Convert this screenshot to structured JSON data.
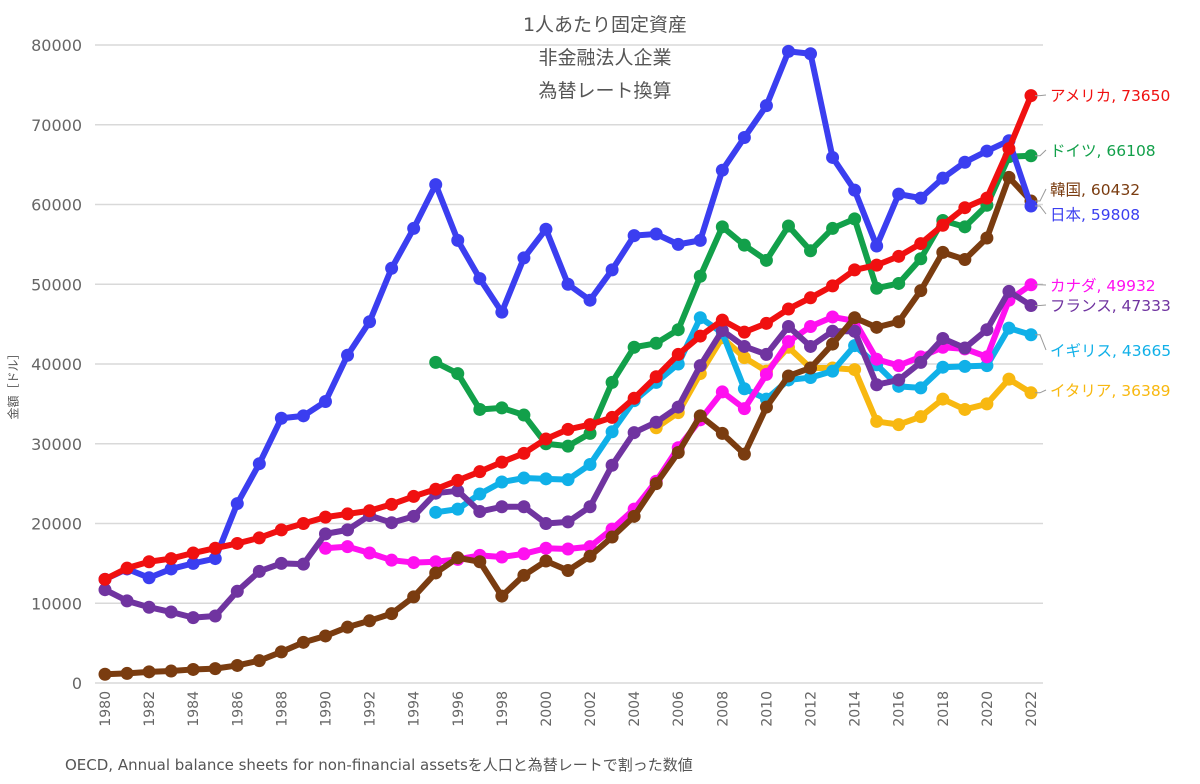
{
  "chart_data": {
    "type": "line",
    "title": [
      "1人あたり固定資産",
      "非金融法人企業",
      "為替レート換算"
    ],
    "xlabel": "",
    "ylabel": "金額［ドル］",
    "xlim": [
      1980,
      2022
    ],
    "ylim": [
      0,
      80000
    ],
    "yticks": [
      0,
      10000,
      20000,
      30000,
      40000,
      50000,
      60000,
      70000,
      80000
    ],
    "xticks": [
      1980,
      1982,
      1984,
      1986,
      1988,
      1990,
      1992,
      1994,
      1996,
      1998,
      2000,
      2002,
      2004,
      2006,
      2008,
      2010,
      2012,
      2014,
      2016,
      2018,
      2020,
      2022
    ],
    "grid": true,
    "legend": "end-of-line labels",
    "series": [
      {
        "name": "日本",
        "end_label": "日本, 59808",
        "color": "#3b3ef0",
        "start": 1980,
        "values": [
          13000,
          14300,
          13200,
          14300,
          15000,
          15600,
          22500,
          27500,
          33200,
          33500,
          35300,
          41100,
          45300,
          52000,
          57000,
          62500,
          55500,
          50700,
          46500,
          53300,
          56900,
          50000,
          48000,
          51800,
          56100,
          56300,
          55000,
          55500,
          64300,
          68400,
          72400,
          79200,
          78900,
          65900,
          61800,
          54800,
          61300,
          60800,
          63300,
          65300,
          66700,
          68000,
          59808
        ]
      },
      {
        "name": "アメリカ",
        "end_label": "アメリカ, 73650",
        "color": "#f01010",
        "start": 1980,
        "values": [
          13000,
          14400,
          15200,
          15600,
          16300,
          16900,
          17500,
          18200,
          19200,
          20000,
          20800,
          21200,
          21600,
          22400,
          23400,
          24300,
          25400,
          26500,
          27700,
          28800,
          30600,
          31800,
          32400,
          33300,
          35700,
          38400,
          41200,
          43500,
          45500,
          44000,
          45100,
          46900,
          48300,
          49800,
          51800,
          52400,
          53500,
          55100,
          57400,
          59600,
          60800,
          67000,
          73650
        ]
      },
      {
        "name": "ドイツ",
        "end_label": "ドイツ, 66108",
        "color": "#12a04a",
        "start": 1995,
        "values": [
          40200,
          38800,
          34300,
          34500,
          33600,
          30000,
          29700,
          31300,
          37700,
          42100,
          42600,
          44300,
          51000,
          57200,
          54900,
          53000,
          57300,
          54200,
          57000,
          58200,
          49500,
          50100,
          53200,
          58000,
          57200,
          59900,
          66000,
          66108
        ]
      },
      {
        "name": "韓国",
        "end_label": "韓国, 60432",
        "color": "#7a3c10",
        "start": 1980,
        "values": [
          1100,
          1200,
          1400,
          1500,
          1700,
          1800,
          2200,
          2800,
          3900,
          5100,
          5900,
          7000,
          7800,
          8700,
          10800,
          13800,
          15700,
          15200,
          10900,
          13500,
          15300,
          14100,
          15900,
          18300,
          20900,
          25000,
          28900,
          33500,
          31300,
          28700,
          34600,
          38500,
          39500,
          42500,
          45800,
          44600,
          45300,
          49200,
          54000,
          53100,
          55800,
          63400,
          60432
        ]
      },
      {
        "name": "カナダ",
        "end_label": "カナダ, 49932",
        "color": "#ff10f0",
        "start": 1990,
        "values": [
          16900,
          17100,
          16300,
          15400,
          15100,
          15200,
          15500,
          16000,
          15800,
          16200,
          16900,
          16800,
          17100,
          19300,
          21800,
          25300,
          29500,
          33000,
          36500,
          34400,
          38700,
          42800,
          44700,
          45900,
          45400,
          40600,
          39800,
          40900,
          42100,
          41900,
          40900,
          48000,
          49932
        ]
      },
      {
        "name": "フランス",
        "end_label": "フランス, 47333",
        "color": "#7034a0",
        "start": 1980,
        "values": [
          11700,
          10300,
          9500,
          8900,
          8200,
          8400,
          11500,
          14000,
          15000,
          14900,
          18700,
          19200,
          21000,
          20100,
          20900,
          23800,
          24100,
          21500,
          22100,
          22100,
          20000,
          20200,
          22100,
          27300,
          31400,
          32700,
          34600,
          39800,
          44200,
          42200,
          41200,
          44700,
          42200,
          44100,
          44100,
          37400,
          38000,
          40200,
          43200,
          42000,
          44300,
          49100,
          47333
        ]
      },
      {
        "name": "イギリス",
        "end_label": "イギリス, 43665",
        "color": "#10b0e8",
        "start": 1995,
        "values": [
          21400,
          21800,
          23700,
          25200,
          25700,
          25600,
          25500,
          27400,
          31500,
          35400,
          37700,
          40000,
          45800,
          43900,
          36900,
          35600,
          38000,
          38300,
          39100,
          42300,
          39900,
          37200,
          37000,
          39600,
          39700,
          39800,
          44500,
          43665
        ]
      },
      {
        "name": "イタリア",
        "end_label": "イタリア, 36389",
        "color": "#f8b810",
        "start": 2005,
        "values": [
          32000,
          33900,
          38800,
          43300,
          40800,
          39100,
          42100,
          39500,
          39500,
          39300,
          32800,
          32400,
          33400,
          35600,
          34300,
          35000,
          38100,
          36389
        ]
      }
    ]
  },
  "footer": "OECD, Annual balance sheets for non-financial assetsを人口と為替レートで割った数値"
}
